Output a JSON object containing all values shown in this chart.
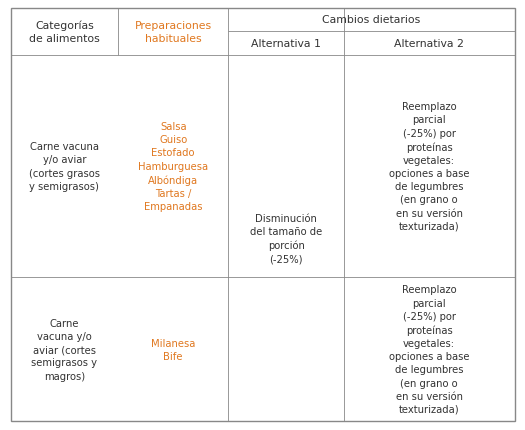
{
  "border_color": "#888888",
  "text_color": "#333333",
  "orange_color": "#e07820",
  "col1_header": "Categorías\nde alimentos",
  "col2_header": "Preparaciones\nhabituales",
  "col3_header": "Alternativa 1",
  "col4_header": "Alternativa 2",
  "span_header": "Cambios dietarios",
  "row1_col1": "Carne vacuna\ny/o aviar\n(cortes grasos\ny semigrasos)",
  "row1_col2": "Salsa\nGuiso\nEstofado\nHamburguesa\nAlbóndiga\nTartas /\nEmpanadas",
  "row1_col3": "Disminución\ndel tamaño de\nporción\n(-25%)",
  "row1_col4": "Reemplazo\nparcial\n(-25%) por\nproteínas\nvegetales:\nopciones a base\nde legumbres\n(en grano o\nen su versión\ntexturizada)",
  "row2_col1": "Carne\nvacuna y/o\naviar (cortes\nsemigrasos y\nmagros)",
  "row2_col2": "Milanesa\nBife",
  "row2_col4": "Reemplazo\nparcial\n(-25%) por\nproteínas\nvegetales:\nopciones a base\nde legumbres\n(en grano o\nen su versión\ntexturizada)",
  "font_size": 7.2,
  "header_font_size": 7.8,
  "fig_width": 5.25,
  "fig_height": 4.31,
  "dpi": 100
}
